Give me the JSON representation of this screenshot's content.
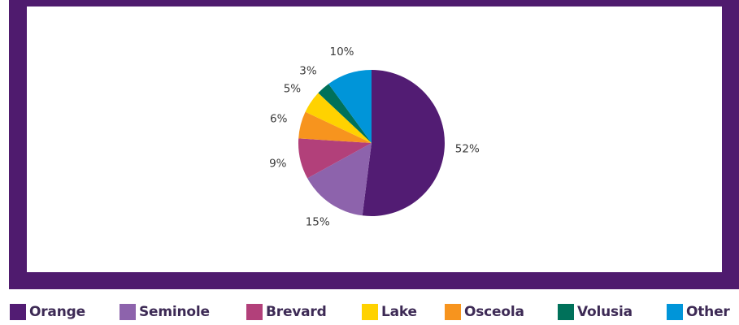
{
  "chart_data": {
    "type": "pie",
    "title": "",
    "start": "12 o'clock",
    "direction": "clockwise",
    "legend_position": "bottom",
    "slices": [
      {
        "label": "Orange",
        "value": 52,
        "display": "52%",
        "color": "#521c73"
      },
      {
        "label": "Seminole",
        "value": 15,
        "display": "15%",
        "color": "#8d63ac"
      },
      {
        "label": "Brevard",
        "value": 9,
        "display": "9%",
        "color": "#b2407a"
      },
      {
        "label": "Osceola",
        "value": 6,
        "display": "6%",
        "color": "#f7941e"
      },
      {
        "label": "Lake",
        "value": 5,
        "display": "5%",
        "color": "#ffd200"
      },
      {
        "label": "Volusia",
        "value": 3,
        "display": "3%",
        "color": "#00715a"
      },
      {
        "label": "Other",
        "value": 10,
        "display": "10%",
        "color": "#0095d9"
      }
    ],
    "legend": [
      {
        "label": "Orange",
        "color": "#521c73"
      },
      {
        "label": "Seminole",
        "color": "#8d63ac"
      },
      {
        "label": "Brevard",
        "color": "#b2407a"
      },
      {
        "label": "Lake",
        "color": "#ffd200"
      },
      {
        "label": "Osceola",
        "color": "#f7941e"
      },
      {
        "label": "Volusia",
        "color": "#00715a"
      },
      {
        "label": "Other",
        "color": "#0095d9"
      }
    ]
  },
  "colors": {
    "frame": "#4f1b6e",
    "panel": "#ffffff",
    "label_text": "#3b3b3b",
    "legend_text": "#3d2a55"
  }
}
